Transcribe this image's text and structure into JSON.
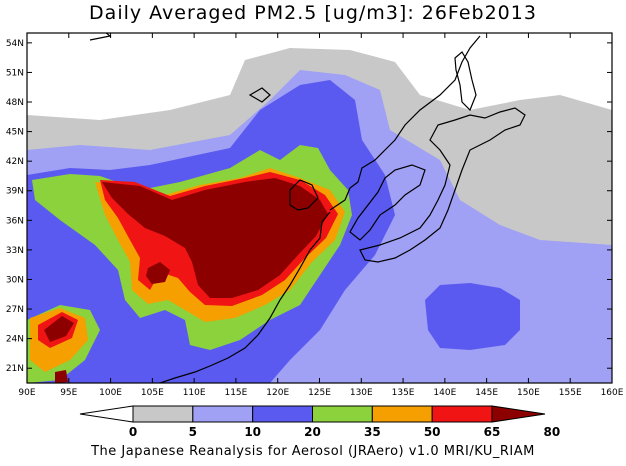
{
  "title": "Daily Averaged PM2.5 [ug/m3]: 26Feb2013",
  "footer": "The Japanese Reanalysis for Aerosol (JRAero) v1.0 MRI/KU_RIAM",
  "map": {
    "lon_range": [
      90,
      160
    ],
    "lat_range": [
      19.5,
      55
    ],
    "lon_ticks": [
      "90E",
      "95E",
      "100E",
      "105E",
      "110E",
      "115E",
      "120E",
      "125E",
      "130E",
      "135E",
      "140E",
      "145E",
      "150E",
      "155E",
      "160E"
    ],
    "lat_ticks": [
      "21N",
      "24N",
      "27N",
      "30N",
      "33N",
      "36N",
      "39N",
      "42N",
      "45N",
      "48N",
      "51N",
      "54N"
    ]
  },
  "colorbar": {
    "labels": [
      "0",
      "5",
      "10",
      "20",
      "35",
      "50",
      "65",
      "80"
    ],
    "colors": [
      "#ffffff",
      "#c8c8c8",
      "#a0a0f5",
      "#5a5af0",
      "#8cd23c",
      "#f5a000",
      "#f01414",
      "#8c0000"
    ]
  }
}
